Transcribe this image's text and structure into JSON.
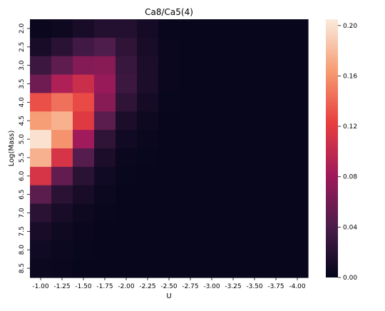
{
  "chart_data": {
    "type": "heatmap",
    "title": "Ca8/Ca5(4)",
    "xlabel": "U",
    "ylabel": "Log(Mass)",
    "x_categories": [
      "-1.00",
      "-1.25",
      "-1.50",
      "-1.75",
      "-2.00",
      "-2.25",
      "-2.50",
      "-2.75",
      "-3.00",
      "-3.25",
      "-3.50",
      "-3.75",
      "-4.00"
    ],
    "y_categories": [
      "2.0",
      "2.5",
      "3.0",
      "3.5",
      "4.0",
      "4.5",
      "5.0",
      "5.5",
      "6.0",
      "6.5",
      "7.0",
      "7.5",
      "8.0",
      "8.5"
    ],
    "values": [
      [
        0.004,
        0.006,
        0.012,
        0.018,
        0.018,
        0.01,
        0.003,
        0.002,
        0.002,
        0.002,
        0.002,
        0.002,
        0.002
      ],
      [
        0.012,
        0.022,
        0.035,
        0.042,
        0.025,
        0.012,
        0.004,
        0.002,
        0.002,
        0.002,
        0.002,
        0.002,
        0.002
      ],
      [
        0.032,
        0.05,
        0.068,
        0.07,
        0.03,
        0.014,
        0.004,
        0.002,
        0.002,
        0.002,
        0.002,
        0.002,
        0.002
      ],
      [
        0.058,
        0.09,
        0.105,
        0.078,
        0.032,
        0.014,
        0.004,
        0.002,
        0.002,
        0.002,
        0.002,
        0.002,
        0.002
      ],
      [
        0.13,
        0.145,
        0.128,
        0.07,
        0.025,
        0.01,
        0.003,
        0.002,
        0.002,
        0.002,
        0.002,
        0.002,
        0.002
      ],
      [
        0.165,
        0.175,
        0.118,
        0.048,
        0.014,
        0.006,
        0.002,
        0.002,
        0.002,
        0.002,
        0.002,
        0.002,
        0.002
      ],
      [
        0.2,
        0.16,
        0.082,
        0.025,
        0.008,
        0.004,
        0.002,
        0.002,
        0.002,
        0.002,
        0.002,
        0.002,
        0.002
      ],
      [
        0.175,
        0.112,
        0.045,
        0.014,
        0.004,
        0.003,
        0.002,
        0.002,
        0.002,
        0.002,
        0.002,
        0.002,
        0.002
      ],
      [
        0.112,
        0.052,
        0.022,
        0.008,
        0.003,
        0.002,
        0.002,
        0.002,
        0.002,
        0.002,
        0.002,
        0.002,
        0.002
      ],
      [
        0.048,
        0.022,
        0.012,
        0.005,
        0.002,
        0.002,
        0.002,
        0.002,
        0.002,
        0.002,
        0.002,
        0.002,
        0.002
      ],
      [
        0.022,
        0.012,
        0.006,
        0.003,
        0.002,
        0.002,
        0.002,
        0.002,
        0.002,
        0.002,
        0.002,
        0.002,
        0.002
      ],
      [
        0.012,
        0.007,
        0.004,
        0.002,
        0.002,
        0.002,
        0.002,
        0.002,
        0.002,
        0.002,
        0.002,
        0.002,
        0.002
      ],
      [
        0.008,
        0.005,
        0.003,
        0.002,
        0.002,
        0.002,
        0.002,
        0.002,
        0.002,
        0.002,
        0.002,
        0.002,
        0.002
      ],
      [
        0.005,
        0.004,
        0.002,
        0.002,
        0.002,
        0.002,
        0.002,
        0.002,
        0.002,
        0.002,
        0.002,
        0.002,
        0.002
      ]
    ],
    "colorbar": {
      "range": [
        0.0,
        0.205
      ],
      "tick_values": [
        0.0,
        0.04,
        0.08,
        0.12,
        0.16,
        0.2
      ],
      "tick_labels": [
        "0.00",
        "0.04",
        "0.08",
        "0.12",
        "0.16",
        "0.20"
      ]
    },
    "colormap": [
      "#03051a",
      "#4c1d4b",
      "#a11a5b",
      "#e83f3f",
      "#f69c73",
      "#faebdd"
    ],
    "grid": false
  }
}
